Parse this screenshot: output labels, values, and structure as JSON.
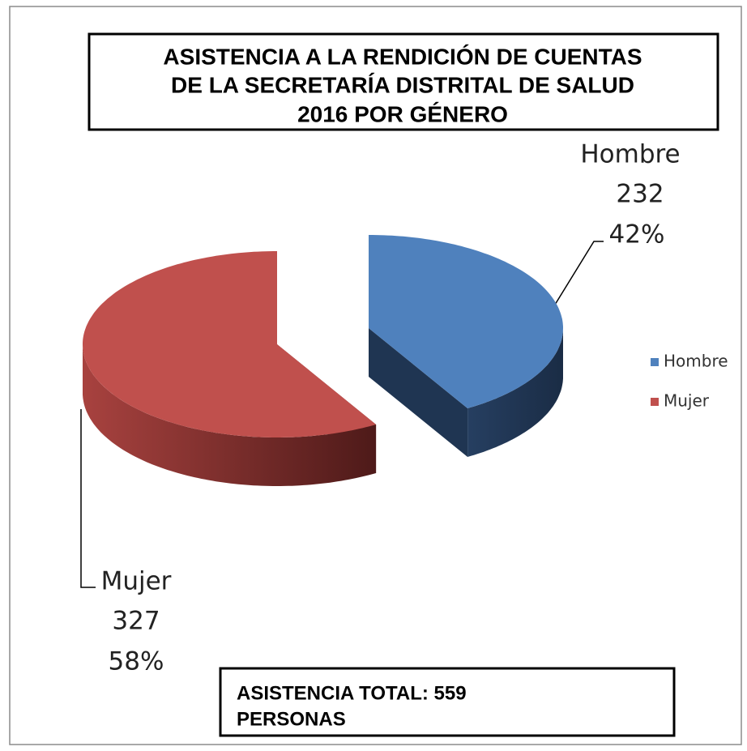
{
  "chart_data": {
    "type": "pie",
    "title": [
      "ASISTENCIA A  LA RENDICIÓN DE CUENTAS",
      "DE LA SECRETARÍA DISTRITAL DE SALUD",
      "2016 POR GÉNERO"
    ],
    "categories": [
      "Hombre",
      "Mujer"
    ],
    "values": [
      232,
      327
    ],
    "percentages": [
      42,
      58
    ],
    "percentage_labels": [
      "42%",
      "58%"
    ],
    "colors": [
      "#4f81bd",
      "#c0504d"
    ],
    "side_colors": [
      "#1f3552",
      "#7a2b29"
    ],
    "legend": "right",
    "annotation": [
      "ASISTENCIA TOTAL: 559",
      "PERSONAS"
    ]
  }
}
